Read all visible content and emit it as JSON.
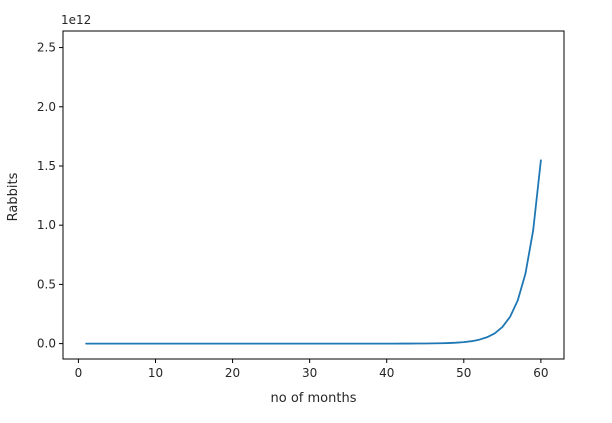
{
  "chart_data": {
    "type": "line",
    "title": "",
    "xlabel": "no of months",
    "ylabel": "Rabbits",
    "y_offset_label": "1e12",
    "xlim": [
      -2,
      63
    ],
    "ylim": [
      -0.13,
      2.64
    ],
    "x_ticks": [
      0,
      10,
      20,
      30,
      40,
      50,
      60
    ],
    "y_ticks": [
      0.0,
      0.5,
      1.0,
      1.5,
      2.0,
      2.5
    ],
    "x_tick_labels": [
      "0",
      "10",
      "20",
      "30",
      "40",
      "50",
      "60"
    ],
    "y_tick_labels": [
      "0.0",
      "0.5",
      "1.0",
      "1.5",
      "2.0",
      "2.5"
    ],
    "grid": false,
    "legend": "none",
    "line_color": "#1f77b4",
    "series": [
      {
        "x": [
          1,
          2,
          3,
          4,
          5,
          6,
          7,
          8,
          9,
          10,
          11,
          12,
          13,
          14,
          15,
          16,
          17,
          18,
          19,
          20,
          21,
          22,
          23,
          24,
          25,
          26,
          27,
          28,
          29,
          30,
          31,
          32,
          33,
          34,
          35,
          36,
          37,
          38,
          39,
          40,
          41,
          42,
          43,
          44,
          45,
          46,
          47,
          48,
          49,
          50,
          51,
          52,
          53,
          54,
          55,
          56,
          57,
          58,
          59,
          60
        ],
        "y": [
          1,
          1,
          2,
          3,
          5,
          8,
          13,
          21,
          34,
          55,
          89,
          144,
          233,
          377,
          610,
          987,
          1597,
          2584,
          4181,
          6765,
          10946,
          17711,
          28657,
          46368,
          75025,
          121393,
          196418,
          317811,
          514229,
          832040,
          1346269,
          2178309,
          3524578,
          5702887,
          9227465,
          14930352,
          24157817,
          39088169,
          63245986,
          102334155,
          165580141,
          267914296,
          433494437,
          701408733,
          1134903170,
          1836311903,
          2971215073,
          4807526976,
          7778742049,
          12586269025,
          20365011074,
          32951280099,
          53316291173,
          86267571272,
          139583862445,
          225851433717,
          365435296162,
          591286729879,
          956722026041,
          1548008755920
        ]
      }
    ]
  }
}
